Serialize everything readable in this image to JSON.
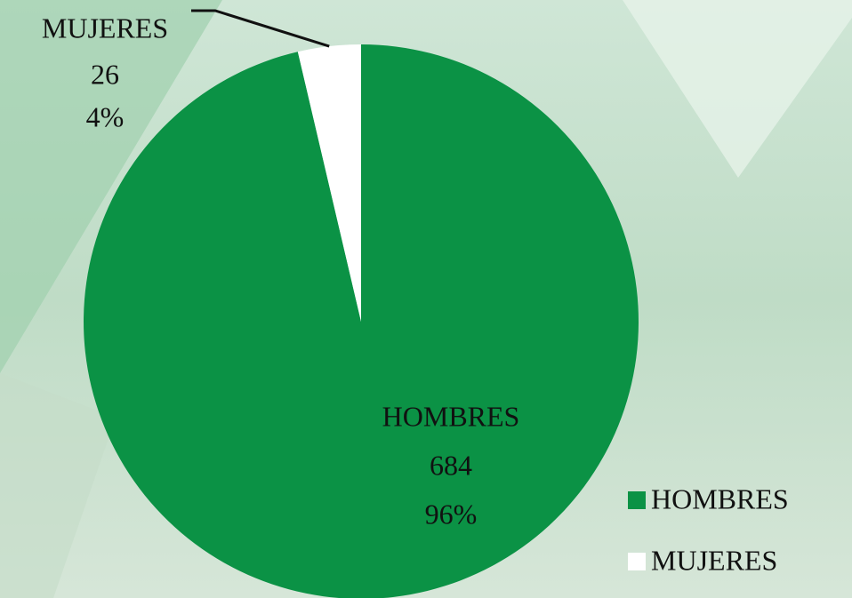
{
  "chart_data": {
    "type": "pie",
    "categories": [
      "HOMBRES",
      "MUJERES"
    ],
    "values": [
      684,
      26
    ],
    "percent_labels": [
      {
        "value": 96,
        "label": "96%"
      },
      {
        "value": 4,
        "label": "4%"
      }
    ],
    "colors": [
      "#0b9245",
      "#ffffff"
    ],
    "legend": "bottom-right"
  }
}
